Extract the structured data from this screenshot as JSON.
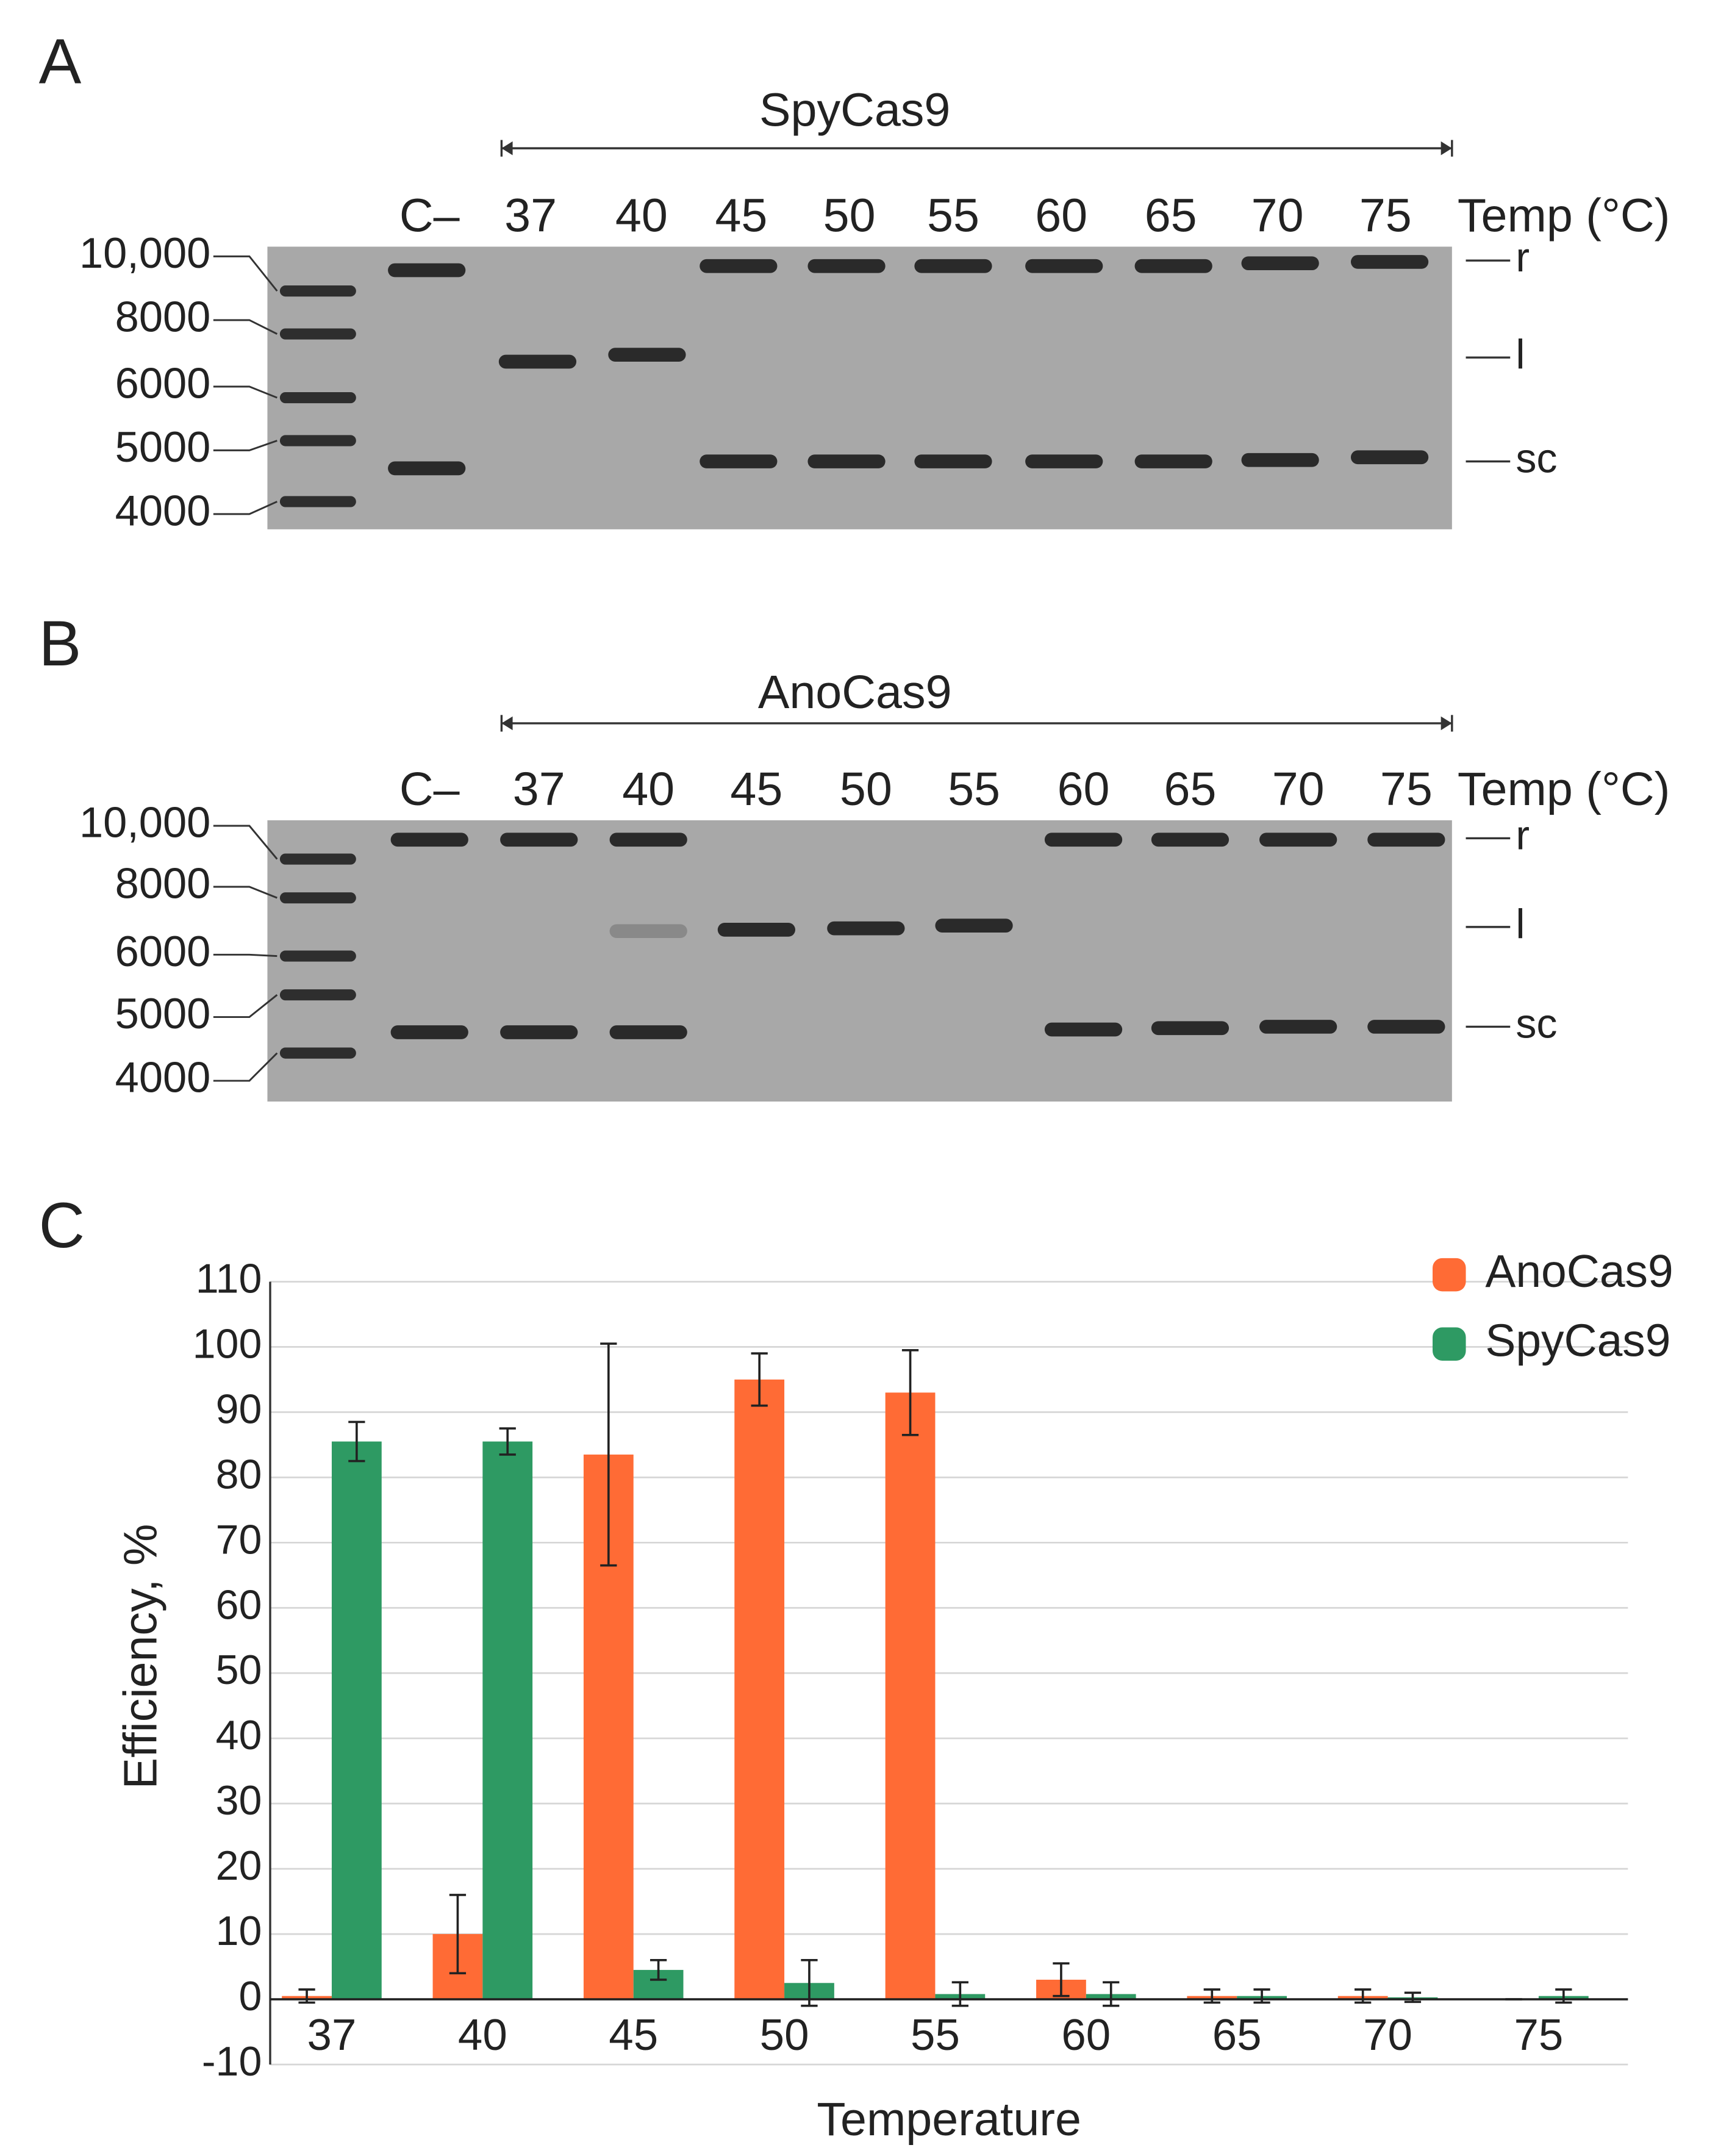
{
  "panels": [
    {
      "label": "A",
      "title": "SpyCas9",
      "lane_labels": [
        "C–",
        "37",
        "40",
        "45",
        "50",
        "55",
        "60",
        "65",
        "70",
        "75"
      ],
      "temp_label": "Temp (°C)",
      "ladder_labels": [
        "10,000",
        "8000",
        "6000",
        "5000",
        "4000"
      ],
      "band_labels": [
        "r",
        "l",
        "sc"
      ]
    },
    {
      "label": "B",
      "title": "AnoCas9",
      "lane_labels": [
        "C–",
        "37",
        "40",
        "45",
        "50",
        "55",
        "60",
        "65",
        "70",
        "75"
      ],
      "temp_label": "Temp (°C)",
      "ladder_labels": [
        "10,000",
        "8000",
        "6000",
        "5000",
        "4000"
      ],
      "band_labels": [
        "r",
        "l",
        "sc"
      ]
    }
  ],
  "chart_data": {
    "type": "bar",
    "panel_label": "C",
    "xlabel": "Temperature",
    "ylabel": "Efficiency, %",
    "categories": [
      "37",
      "40",
      "45",
      "50",
      "55",
      "60",
      "65",
      "70",
      "75"
    ],
    "series": [
      {
        "name": "AnoCas9",
        "color": "#ff6b35",
        "values": [
          0.5,
          10,
          83.5,
          95,
          93,
          3,
          0.5,
          0.5,
          0
        ],
        "errors": [
          1,
          6,
          17,
          4,
          6.5,
          2.5,
          1,
          1,
          0
        ]
      },
      {
        "name": "SpyCas9",
        "color": "#2e9a63",
        "values": [
          85.5,
          85.5,
          4.5,
          2.5,
          0.8,
          0.8,
          0.5,
          0.3,
          0.5
        ],
        "errors": [
          3,
          2,
          1.5,
          3.5,
          1.8,
          1.8,
          1,
          0.7,
          1
        ]
      }
    ],
    "ylim": [
      -10,
      110
    ],
    "yticks": [
      -10,
      0,
      10,
      20,
      30,
      40,
      50,
      60,
      70,
      80,
      90,
      100,
      110
    ],
    "grid": true,
    "legend": "top-right"
  }
}
